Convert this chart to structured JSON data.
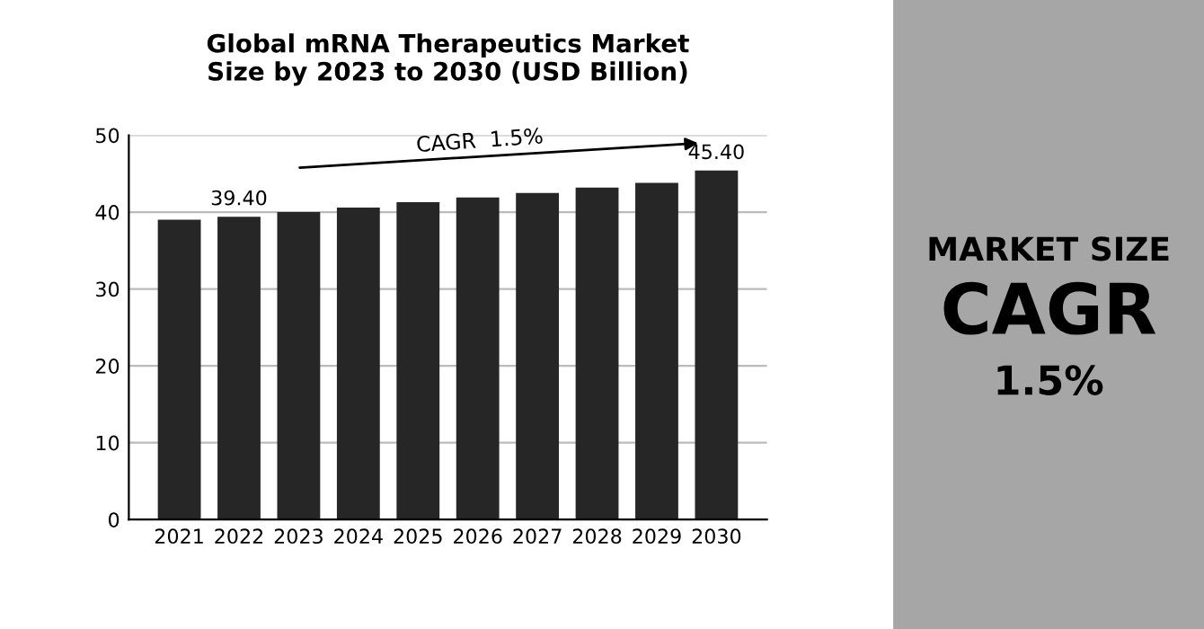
{
  "chart_data": [
    {
      "type": "bar",
      "title": "Global mRNA Therapeutics Market\nSize by 2023 to 2030 (USD Billion)",
      "categories": [
        "2021",
        "2022",
        "2023",
        "2024",
        "2025",
        "2026",
        "2027",
        "2028",
        "2029",
        "2030"
      ],
      "values": [
        39.0,
        39.4,
        40.0,
        40.6,
        41.3,
        41.9,
        42.5,
        43.2,
        43.8,
        45.4
      ],
      "value_labels": [
        null,
        "39.40",
        null,
        null,
        null,
        null,
        null,
        null,
        null,
        "45.40"
      ],
      "color": "#262626",
      "ylim": [
        0,
        50
      ],
      "yticks": [
        0,
        10,
        20,
        30,
        40,
        50
      ],
      "grid": "y",
      "annotations": [
        "CAGR  1.5%"
      ]
    },
    {
      "type": "other",
      "annotations": [
        "MARKET SIZE",
        "CAGR",
        "1.5%"
      ]
    }
  ]
}
